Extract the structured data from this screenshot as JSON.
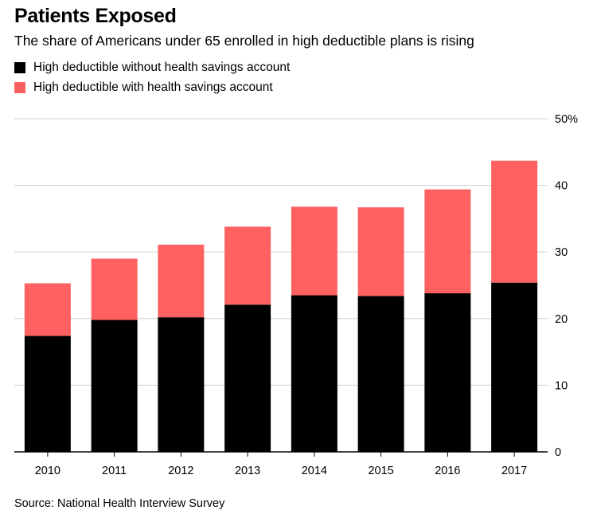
{
  "title": "Patients Exposed",
  "subtitle": "The share of Americans under 65 enrolled in high deductible plans is rising",
  "source": "Source: National Health Interview Survey",
  "legend": [
    {
      "label": "High deductible without health savings account",
      "color": "#000000"
    },
    {
      "label": "High deductible with health savings account",
      "color": "#ff6161"
    }
  ],
  "chart_data": {
    "type": "bar",
    "stacked": true,
    "categories": [
      "2010",
      "2011",
      "2012",
      "2013",
      "2014",
      "2015",
      "2016",
      "2017"
    ],
    "series": [
      {
        "name": "High deductible without health savings account",
        "color": "#000000",
        "values": [
          17.4,
          19.8,
          20.2,
          22.1,
          23.5,
          23.4,
          23.8,
          25.4
        ]
      },
      {
        "name": "High deductible with health savings account",
        "color": "#ff6161",
        "values": [
          7.9,
          9.2,
          10.9,
          11.7,
          13.3,
          13.3,
          15.6,
          18.3
        ]
      }
    ],
    "ylim": [
      0,
      50
    ],
    "yticks": [
      0,
      10,
      20,
      30,
      40,
      50
    ],
    "ytick_labels": [
      "0",
      "10",
      "20",
      "30",
      "40",
      "50%"
    ],
    "y_axis_side": "right",
    "grid": true,
    "legend_position": "top-left"
  }
}
